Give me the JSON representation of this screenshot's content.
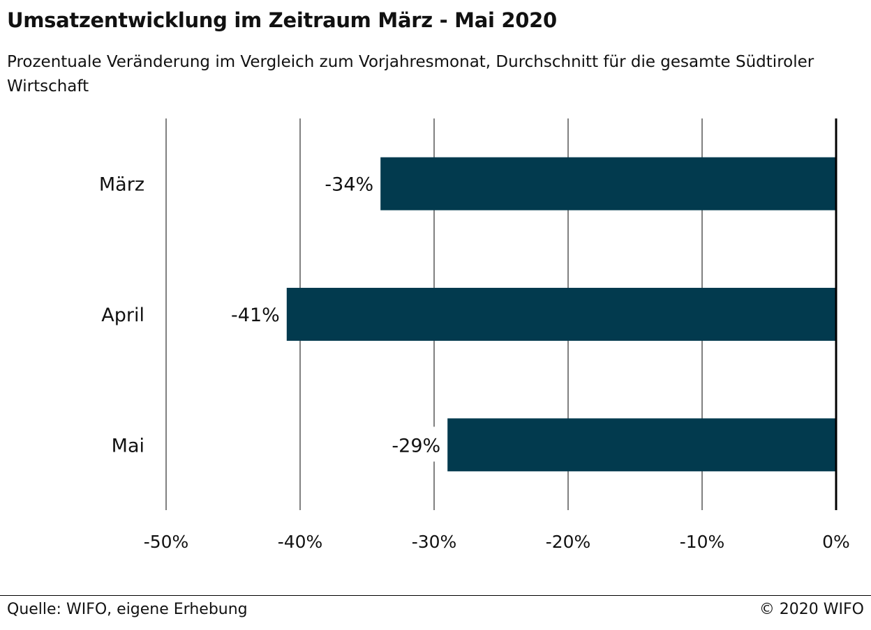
{
  "header": {
    "title": "Umsatzentwicklung im Zeitraum März - Mai 2020",
    "subtitle": "Prozentuale Veränderung im Vergleich zum Vorjahresmonat, Durchschnitt für die gesamte Südtiroler Wirtschaft"
  },
  "footer": {
    "source": "Quelle: WIFO, eigene Erhebung",
    "copyright": "© 2020 WIFO"
  },
  "colors": {
    "bar": "#023a4e",
    "gridline": "#000000",
    "zero_axis": "#000000"
  },
  "chart_data": {
    "type": "bar",
    "orientation": "horizontal",
    "categories": [
      "März",
      "April",
      "Mai"
    ],
    "values": [
      -34,
      -41,
      -29
    ],
    "data_labels": [
      "-34%",
      "-41%",
      "-29%"
    ],
    "xlim": [
      -50,
      0
    ],
    "xticks": [
      -50,
      -40,
      -30,
      -20,
      -10,
      0
    ],
    "xtick_labels": [
      "-50%",
      "-40%",
      "-30%",
      "-20%",
      "-10%",
      "0%"
    ],
    "grid": "vertical",
    "legend": "none"
  }
}
